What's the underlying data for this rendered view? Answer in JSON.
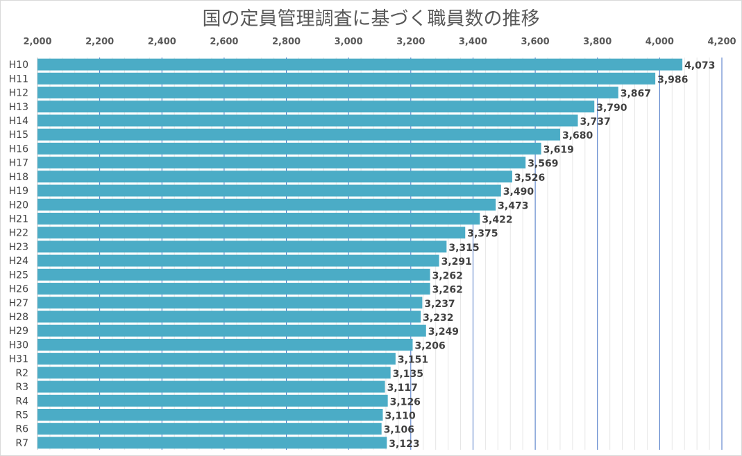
{
  "chart_data": {
    "type": "bar",
    "orientation": "horizontal",
    "title": "国の定員管理調査に基づく職員数の推移",
    "xlabel": "",
    "ylabel": "",
    "xlim": [
      2000,
      4200
    ],
    "x_ticks": [
      "2,000",
      "2,200",
      "2,400",
      "2,600",
      "2,800",
      "3,000",
      "3,200",
      "3,400",
      "3,600",
      "3,800",
      "4,000",
      "4,200"
    ],
    "x_axis_position": "top",
    "grid": true,
    "legend": "none",
    "bar_color": "#4BACC6",
    "major_grid_color": "#4472C4",
    "minor_grid_color": "#E6E6E6",
    "categories": [
      "H10",
      "H11",
      "H12",
      "H13",
      "H14",
      "H15",
      "H16",
      "H17",
      "H18",
      "H19",
      "H20",
      "H21",
      "H22",
      "H23",
      "H24",
      "H25",
      "H26",
      "H27",
      "H28",
      "H29",
      "H30",
      "H31",
      "R2",
      "R3",
      "R4",
      "R5",
      "R6",
      "R7"
    ],
    "values": [
      4073,
      3986,
      3867,
      3790,
      3737,
      3680,
      3619,
      3569,
      3526,
      3490,
      3473,
      3422,
      3375,
      3315,
      3291,
      3262,
      3262,
      3237,
      3232,
      3249,
      3206,
      3151,
      3135,
      3117,
      3126,
      3110,
      3106,
      3123
    ],
    "data_labels": [
      "4,073",
      "3,986",
      "3,867",
      "3,790",
      "3,737",
      "3,680",
      "3,619",
      "3,569",
      "3,526",
      "3,490",
      "3,473",
      "3,422",
      "3,375",
      "3,315",
      "3,291",
      "3,262",
      "3,262",
      "3,237",
      "3,232",
      "3,249",
      "3,206",
      "3,151",
      "3,135",
      "3,117",
      "3,126",
      "3,110",
      "3,106",
      "3,123"
    ]
  }
}
